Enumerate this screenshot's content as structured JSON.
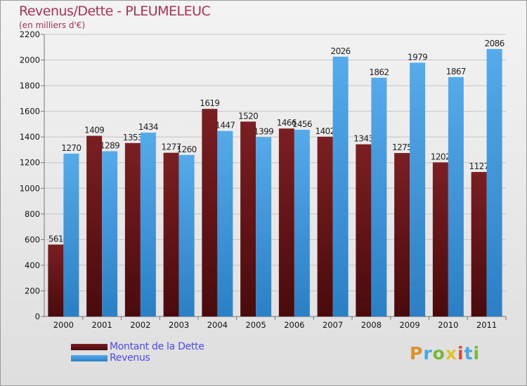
{
  "header": {
    "title": "Revenus/Dette - PLEUMELEUC",
    "subtitle": "(en milliers d'€)"
  },
  "colors": {
    "debt": "#7a1f22",
    "debt_dark": "#4a0a0c",
    "revenue": "#55aaea",
    "revenue_dark": "#2b7fc4",
    "title": "#a8325a",
    "legend_text": "#4a4af0"
  },
  "legend": {
    "debt_label": "Montant de la Dette",
    "revenue_label": "Revenus"
  },
  "logo": {
    "text": "Proxiti"
  },
  "chart_data": {
    "type": "bar",
    "title": "Revenus/Dette - PLEUMELEUC",
    "subtitle": "(en milliers d'€)",
    "xlabel": "",
    "ylabel": "",
    "ylim": [
      0,
      2200
    ],
    "yticks": [
      0,
      200,
      400,
      600,
      800,
      1000,
      1200,
      1400,
      1600,
      1800,
      2000,
      2200
    ],
    "grid": true,
    "legend_position": "bottom-left",
    "categories": [
      "2000",
      "2001",
      "2002",
      "2003",
      "2004",
      "2005",
      "2006",
      "2007",
      "2008",
      "2009",
      "2010",
      "2011"
    ],
    "series": [
      {
        "name": "Montant de la Dette",
        "values": [
          561,
          1409,
          1353,
          1277,
          1619,
          1520,
          1466,
          1402,
          1343,
          1275,
          1202,
          1127
        ]
      },
      {
        "name": "Revenus",
        "values": [
          1270,
          1289,
          1434,
          1260,
          1447,
          1399,
          1456,
          2026,
          1862,
          1979,
          1867,
          2086
        ]
      }
    ]
  }
}
